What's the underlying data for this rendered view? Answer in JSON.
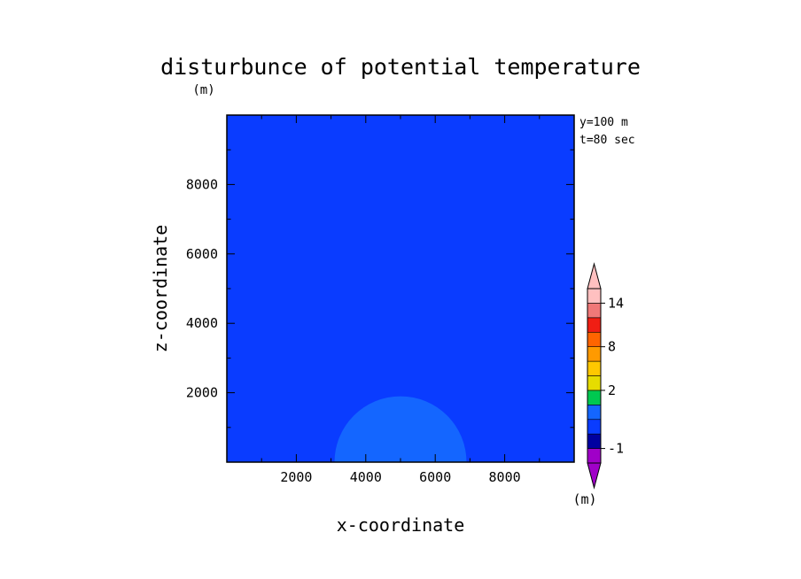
{
  "chart_data": {
    "type": "heatmap",
    "title": "disturbunce of potential temperature",
    "y_unit_label": "(m)",
    "xlabel": "x-coordinate",
    "ylabel": "z-coordinate",
    "xlim": [
      0,
      10000
    ],
    "ylim": [
      0,
      10000
    ],
    "x_ticks": [
      2000,
      4000,
      6000,
      8000
    ],
    "y_ticks": [
      2000,
      4000,
      6000,
      8000
    ],
    "background_color": "#0a3cff",
    "bubble": {
      "center_x": 5000,
      "center_z": 0,
      "radius_x": 1900,
      "radius_z": 1900,
      "color": "#1466ff"
    },
    "info": [
      "y=100 m",
      "t=80 sec"
    ],
    "colorbar": {
      "unit_label": "(m)",
      "colors": [
        "#a000c8",
        "#0000a0",
        "#0a3cff",
        "#1466ff",
        "#00c850",
        "#e6dc00",
        "#ffc800",
        "#ff9a00",
        "#ff6400",
        "#f01e14",
        "#f07878",
        "#ffc0c0"
      ],
      "under_color": "#a000c8",
      "over_color": "#ffc0c0",
      "labeled_levels": [
        {
          "level": 1,
          "label": "-1"
        },
        {
          "level": 5,
          "label": "2"
        },
        {
          "level": 8,
          "label": "8"
        },
        {
          "level": 11,
          "label": "14"
        }
      ]
    }
  }
}
